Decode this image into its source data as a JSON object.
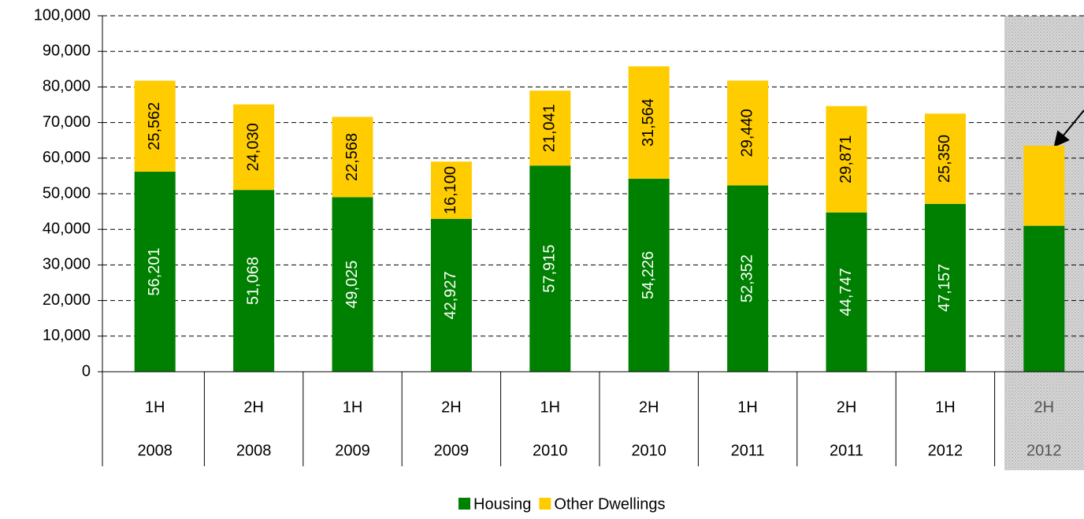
{
  "chart_data": {
    "type": "stacked_bar",
    "categories": [
      "1H",
      "2H",
      "1H",
      "2H",
      "1H",
      "2H",
      "1H",
      "2H",
      "1H",
      "2H"
    ],
    "category_years": [
      "2008",
      "2008",
      "2009",
      "2009",
      "2010",
      "2010",
      "2011",
      "2011",
      "2012",
      "2012"
    ],
    "series": [
      {
        "name": "Housing",
        "color": "#008000",
        "values": [
          56201,
          51068,
          49025,
          42927,
          57915,
          54226,
          52352,
          44747,
          47157,
          41000
        ],
        "value_labels": [
          "56,201",
          "51,068",
          "49,025",
          "42,927",
          "57,915",
          "54,226",
          "52,352",
          "44,747",
          "47,157",
          null
        ]
      },
      {
        "name": "Other Dwellings",
        "color": "#ffcc00",
        "values": [
          25562,
          24030,
          22568,
          16100,
          21041,
          31564,
          29440,
          29871,
          25350,
          22500
        ],
        "value_labels": [
          "25,562",
          "24,030",
          "22,568",
          "16,100",
          "21,041",
          "31,564",
          "29,440",
          "29,871",
          "25,350",
          null
        ]
      }
    ],
    "ylim": [
      0,
      100000
    ],
    "yticks": [
      0,
      {
        "value": 10000,
        "label": "10,000"
      },
      {
        "value": 20000,
        "label": "20,000"
      },
      {
        "value": 30000,
        "label": "30,000"
      },
      {
        "value": 40000,
        "label": "40,000"
      },
      {
        "value": 50000,
        "label": "50,000"
      },
      {
        "value": 60000,
        "label": "60,000"
      },
      {
        "value": 70000,
        "label": "70,000"
      },
      {
        "value": 80000,
        "label": "80,000"
      },
      {
        "value": 90000,
        "label": "90,000"
      },
      {
        "value": 100000,
        "label": "100,000"
      }
    ],
    "grid": true,
    "legend": "bottom"
  }
}
